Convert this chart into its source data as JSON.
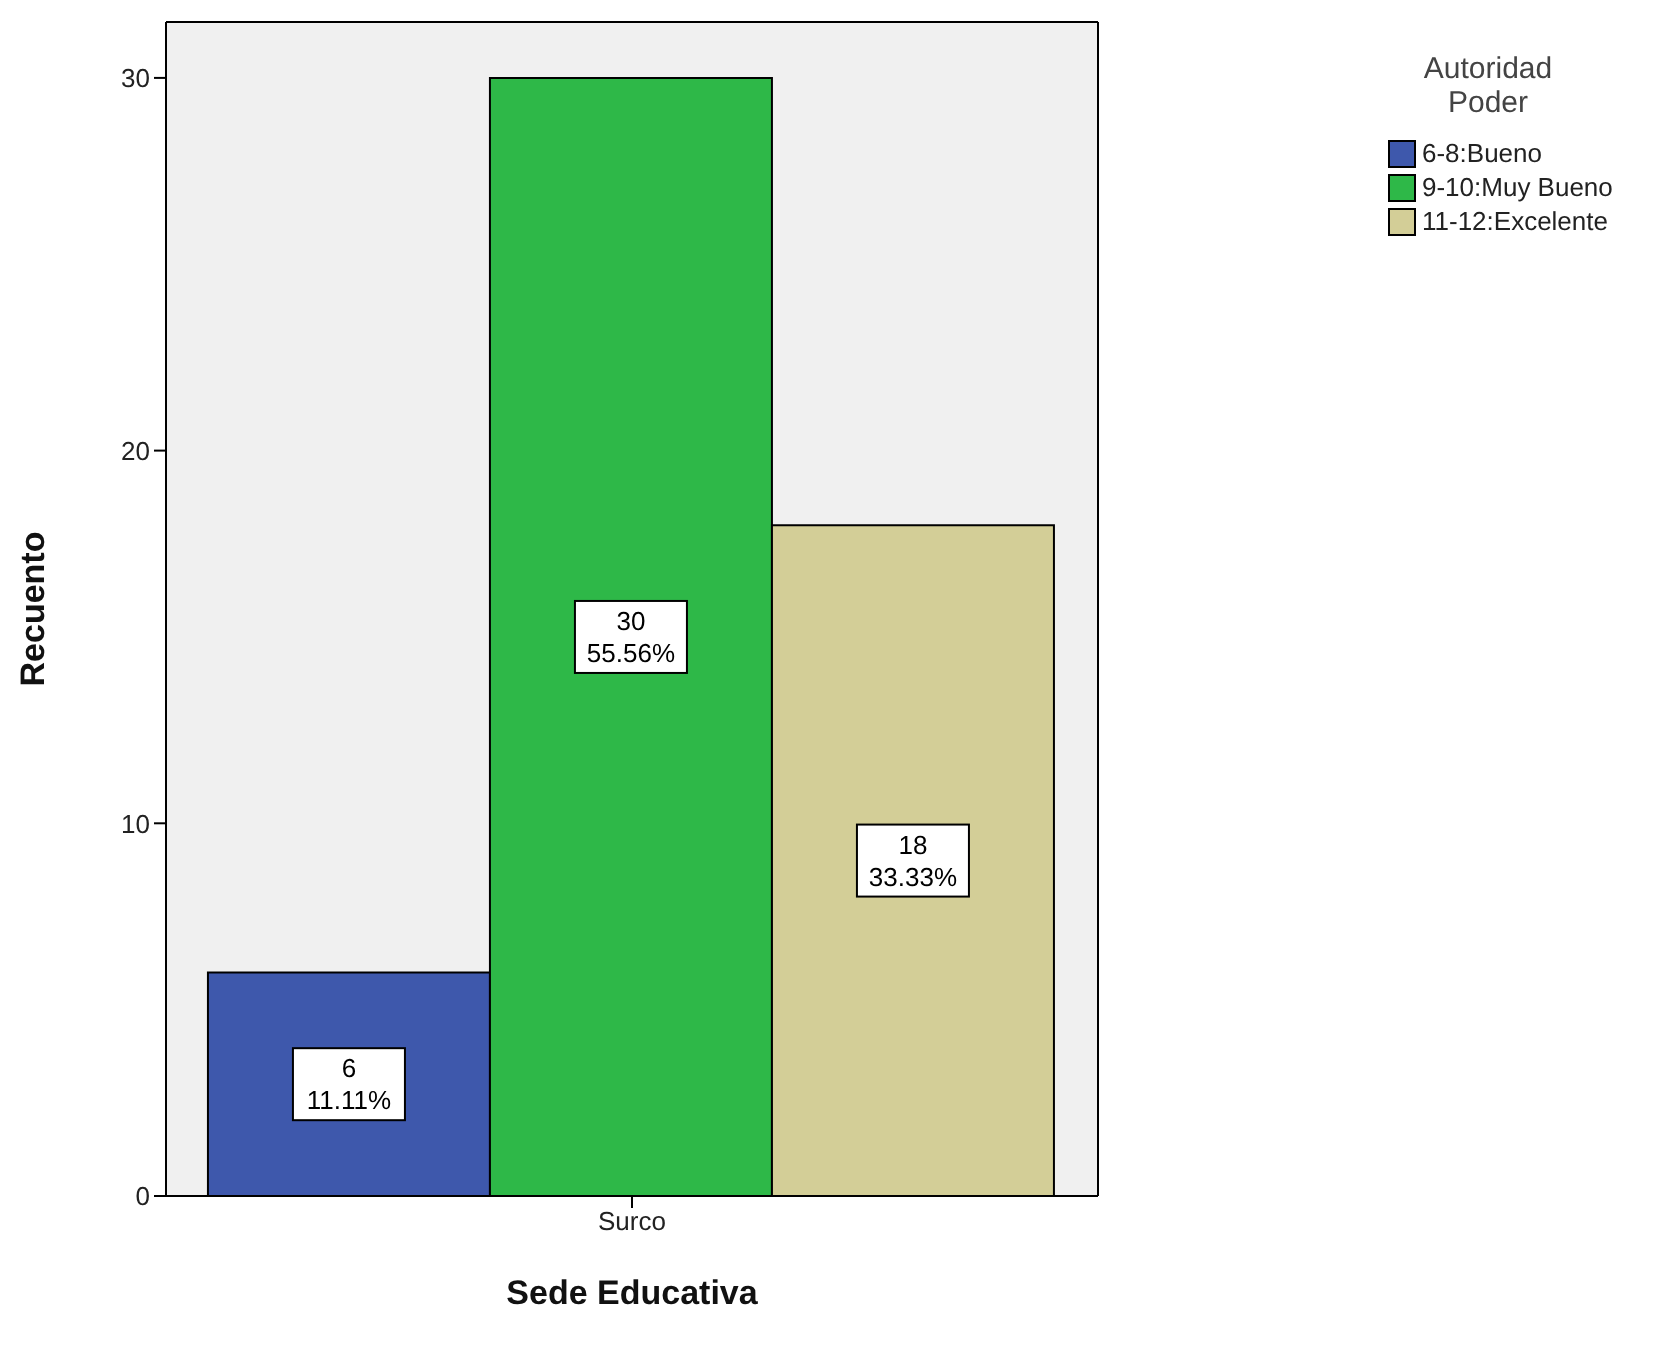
{
  "chart_data": {
    "type": "bar",
    "categories": [
      "Surco"
    ],
    "xlabel": "Sede Educativa",
    "ylabel": "Recuento",
    "legend_title": "Autoridad Poder",
    "legend": "top right",
    "ylim": [
      0,
      31.5
    ],
    "yticks": [
      0,
      10,
      20,
      30
    ],
    "series": [
      {
        "name": "6-8:Bueno",
        "color": "#3e58ac",
        "values": [
          6
        ],
        "value_labels": [
          "6\n11.11%"
        ]
      },
      {
        "name": "9-10:Muy Bueno",
        "color": "#2eb848",
        "values": [
          30
        ],
        "value_labels": [
          "30\n55.56%"
        ]
      },
      {
        "name": "11-12:Excelente",
        "color": "#d3ce97",
        "values": [
          18
        ],
        "value_labels": [
          "18\n33.33%"
        ]
      }
    ]
  }
}
